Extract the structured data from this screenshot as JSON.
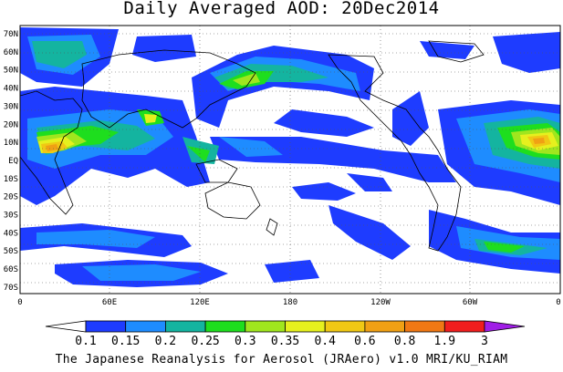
{
  "title": "Daily Averaged AOD: 20Dec2014",
  "footer": "The Japanese Reanalysis for Aerosol (JRAero) v1.0 MRI/KU_RIAM",
  "lat_labels": [
    "70N",
    "60N",
    "50N",
    "40N",
    "30N",
    "20N",
    "10N",
    "EQ",
    "10S",
    "20S",
    "30S",
    "40S",
    "50S",
    "60S",
    "70S"
  ],
  "lon_labels": [
    "0",
    "60E",
    "120E",
    "180",
    "120W",
    "60W",
    "0"
  ],
  "colorbar": {
    "labels": [
      "0.1",
      "0.15",
      "0.2",
      "0.25",
      "0.3",
      "0.35",
      "0.4",
      "0.6",
      "0.8",
      "1.9",
      "3"
    ],
    "colors": [
      "#ffffff",
      "#1e3cff",
      "#1e8cff",
      "#14b4a0",
      "#1ede1e",
      "#a0e61e",
      "#e6f01e",
      "#f0c814",
      "#f0a014",
      "#f07814",
      "#f01e1e",
      "#a01ee6"
    ]
  },
  "palette": {
    "low": "#1e3cff",
    "mid1": "#1e8cff",
    "mid2": "#14b4a0",
    "mid3": "#1ede1e",
    "mid4": "#a0e61e",
    "hi1": "#e6f01e",
    "hi2": "#f0c814",
    "hi3": "#f0a014"
  }
}
